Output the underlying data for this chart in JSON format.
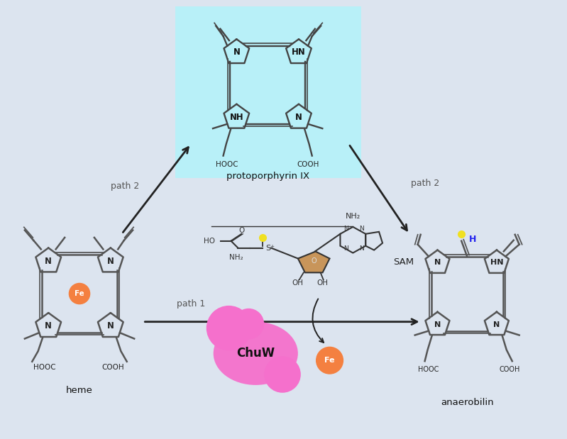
{
  "background_color": "#dce4ef",
  "protoporphyrin_box_color": "#b8f0f8",
  "label_protoporphyrin": "protoporphyrin IX",
  "label_heme": "heme",
  "label_anaerobilin": "anaerobilin",
  "label_SAM": "SAM",
  "label_path2_left": "path 2",
  "label_path2_right": "path 2",
  "label_path1": "path 1",
  "label_ChuW": "ChuW",
  "fe_center_color": "#f48040",
  "fe_product_color": "#f48040",
  "chuw_color": "#f570cc",
  "sulfur_color": "#f0e020",
  "H_color": "#2222ee",
  "arrow_color": "#222222",
  "bond_color": "#555555",
  "text_color": "#222222",
  "label_color": "#444444",
  "fig_width": 7.99,
  "fig_height": 6.19
}
